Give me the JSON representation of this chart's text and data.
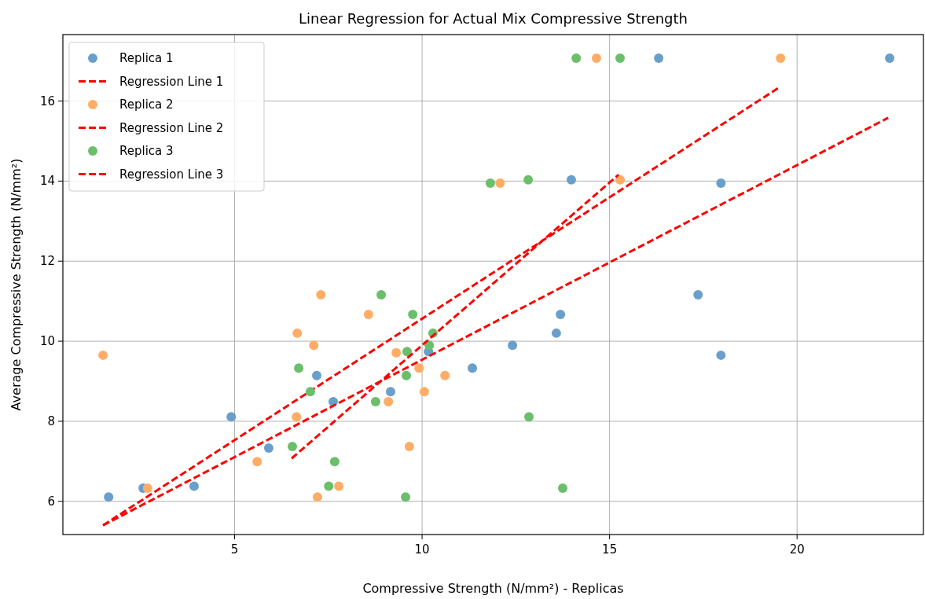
{
  "chart_data": {
    "type": "scatter",
    "title": "Linear Regression for Actual Mix Compressive Strength",
    "xlabel": "Compressive Strength (N/mm²) - Replicas",
    "ylabel": "Average Compressive Strength (N/mm²)",
    "xlim": [
      0.42,
      23.37
    ],
    "ylim": [
      5.17,
      17.66
    ],
    "xticks": [
      5,
      10,
      15,
      20
    ],
    "yticks": [
      6,
      8,
      10,
      12,
      14,
      16
    ],
    "grid": true,
    "legend": "top left",
    "marker": "circle",
    "series": [
      {
        "name": "Replica 1",
        "color": "#6a9fcb",
        "x": [
          1.64,
          2.56,
          3.92,
          4.91,
          5.91,
          7.19,
          7.63,
          9.16,
          10.17,
          11.34,
          12.41,
          13.58,
          13.69,
          13.98,
          16.31,
          17.36,
          17.97,
          17.97,
          22.47
        ],
        "values": [
          6.11,
          6.33,
          6.38,
          8.11,
          7.33,
          9.14,
          8.49,
          8.74,
          9.74,
          9.33,
          9.9,
          10.2,
          10.67,
          14.03,
          17.07,
          11.16,
          13.95,
          9.65,
          17.07
        ]
      },
      {
        "name": "Regression Line 1",
        "type": "line",
        "color": "#ff0000",
        "line_style": "dashed",
        "marker": "none",
        "x": [
          1.49,
          22.43
        ],
        "values": [
          5.4,
          15.58
        ]
      },
      {
        "name": "Replica 2",
        "color": "#ffad66",
        "x": [
          1.49,
          2.68,
          5.6,
          6.65,
          6.67,
          7.11,
          7.3,
          7.21,
          7.78,
          8.57,
          9.1,
          9.31,
          9.66,
          9.92,
          10.06,
          10.61,
          12.08,
          14.65,
          15.28,
          19.56
        ],
        "values": [
          9.65,
          6.33,
          6.99,
          8.11,
          10.2,
          9.9,
          11.16,
          6.11,
          6.38,
          10.67,
          8.49,
          9.71,
          7.37,
          9.33,
          8.74,
          9.14,
          13.95,
          17.07,
          14.03,
          17.07
        ]
      },
      {
        "name": "Regression Line 2",
        "type": "line",
        "color": "#ff0000",
        "line_style": "dashed",
        "marker": "none",
        "x": [
          1.49,
          19.54
        ],
        "values": [
          5.4,
          16.35
        ]
      },
      {
        "name": "Replica 3",
        "color": "#6bbf6b",
        "x": [
          6.54,
          6.71,
          7.02,
          7.51,
          7.67,
          8.76,
          8.91,
          9.56,
          9.58,
          9.6,
          9.75,
          10.19,
          10.29,
          11.82,
          12.83,
          12.85,
          13.75,
          14.11,
          15.28
        ],
        "values": [
          7.37,
          9.33,
          8.74,
          6.38,
          6.99,
          8.49,
          11.16,
          6.11,
          9.14,
          9.74,
          10.67,
          9.9,
          10.2,
          13.95,
          14.03,
          8.11,
          6.33,
          17.07,
          17.07
        ]
      },
      {
        "name": "Regression Line 3",
        "type": "line",
        "color": "#ff0000",
        "line_style": "dashed",
        "marker": "none",
        "x": [
          6.52,
          15.24
        ],
        "values": [
          7.07,
          14.16
        ]
      }
    ]
  }
}
